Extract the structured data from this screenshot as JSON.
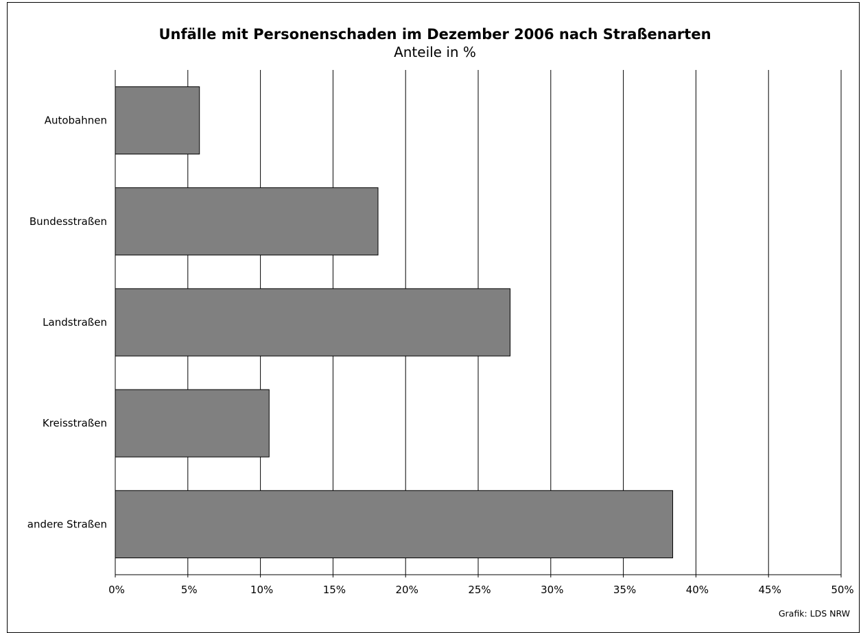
{
  "chart_data": {
    "type": "bar",
    "orientation": "horizontal",
    "title": "Unfälle mit Personenschaden im Dezember 2006 nach Straßenarten",
    "subtitle": "Anteile in %",
    "categories": [
      "Autobahnen",
      "Bundesstraßen",
      "Landstraßen",
      "Kreisstraßen",
      "andere Straßen"
    ],
    "values": [
      5.8,
      18.1,
      27.2,
      10.6,
      38.4
    ],
    "xlim": [
      0,
      50
    ],
    "x_ticks": [
      "0%",
      "5%",
      "10%",
      "15%",
      "20%",
      "25%",
      "30%",
      "35%",
      "40%",
      "45%",
      "50%"
    ],
    "xlabel": "",
    "ylabel": "",
    "grid": "vertical",
    "bar_color": "#808080",
    "credit": "Grafik: LDS NRW"
  }
}
